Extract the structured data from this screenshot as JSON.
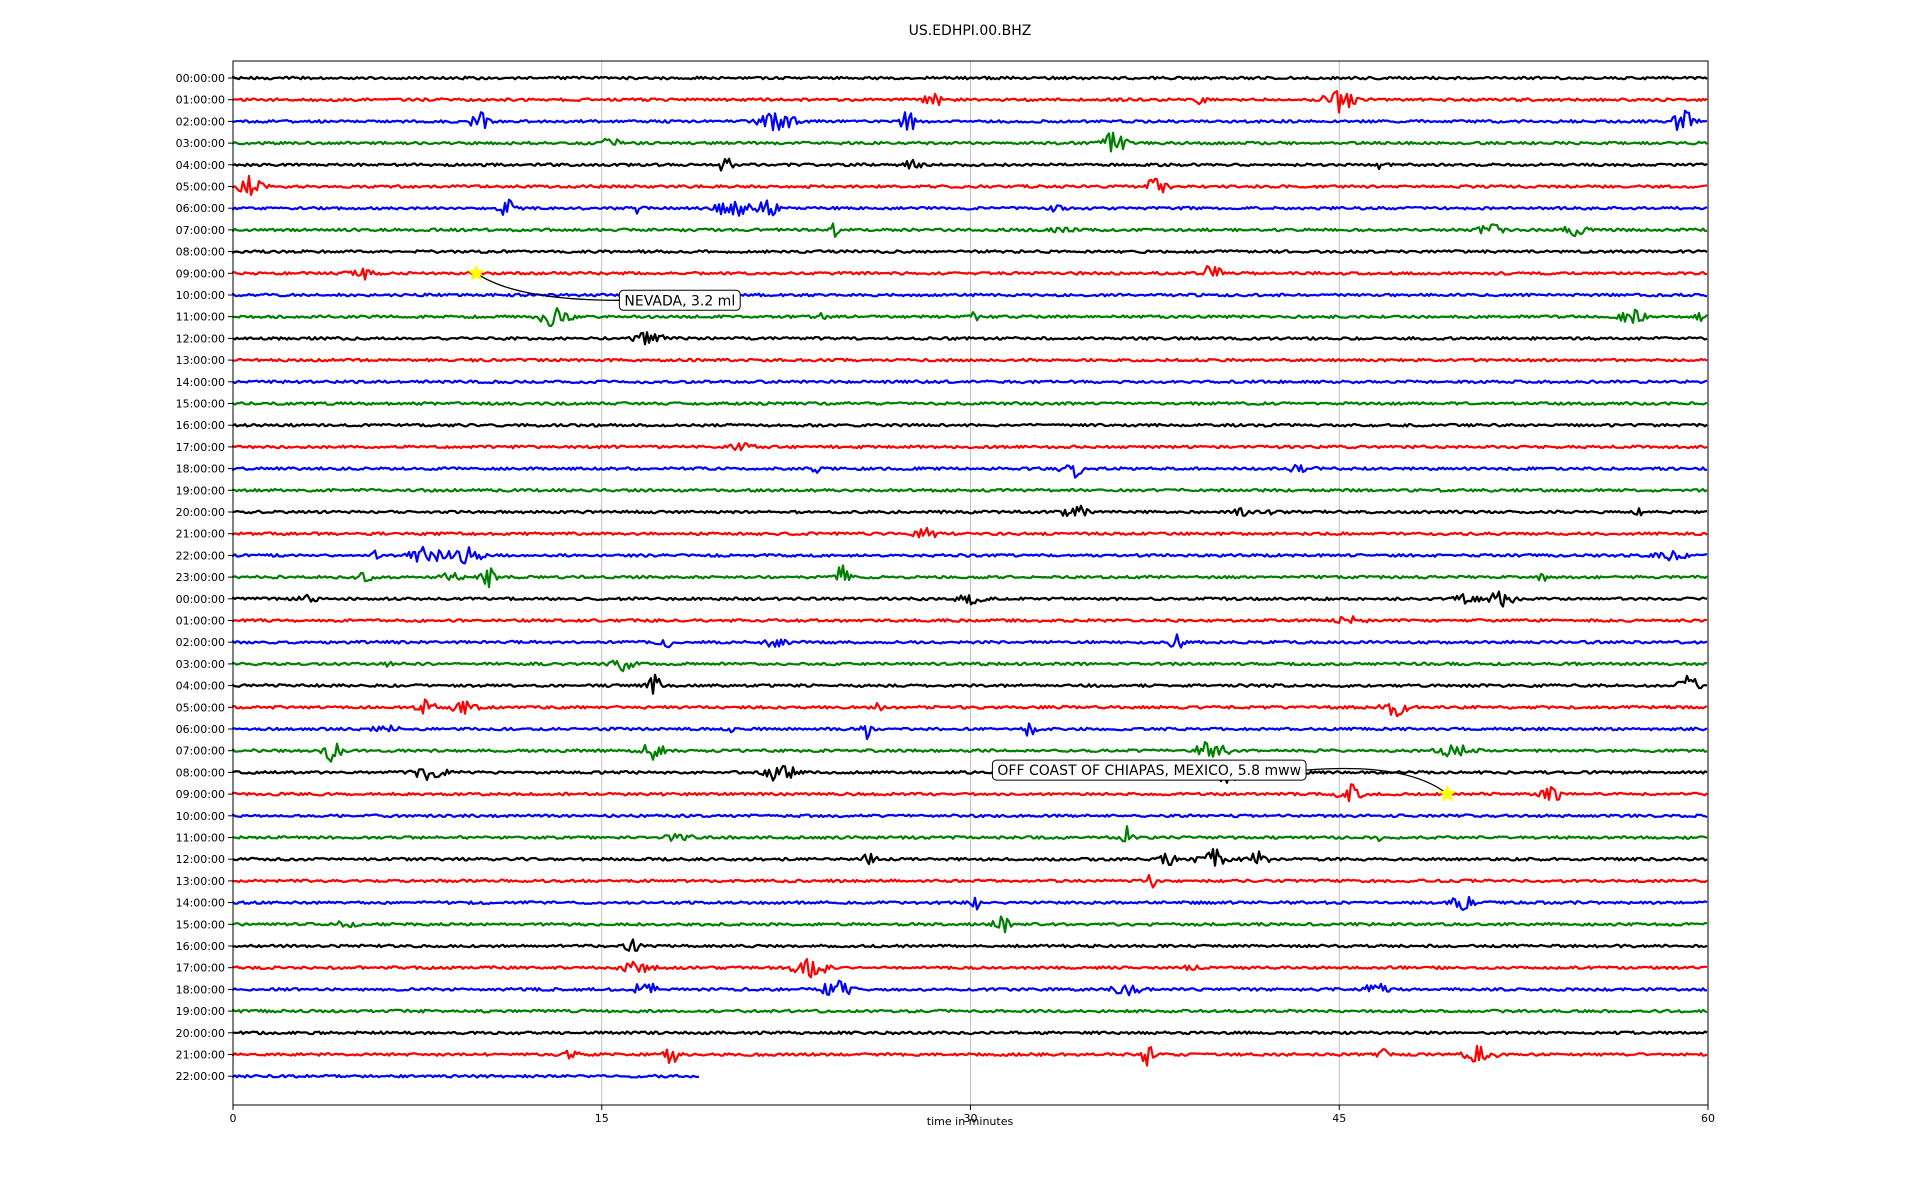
{
  "chart_data": {
    "type": "line",
    "title": "US.EDHPI.00.BHZ",
    "xlabel": "time in minutes",
    "ylabel": "",
    "xlim": [
      0,
      60
    ],
    "x_ticks": [
      0,
      15,
      30,
      45,
      60
    ],
    "grid": "vertical",
    "trace_colors": [
      "#000000",
      "#ff0000",
      "#0000ff",
      "#008000"
    ],
    "row_labels": [
      "00:00:00",
      "01:00:00",
      "02:00:00",
      "03:00:00",
      "04:00:00",
      "05:00:00",
      "06:00:00",
      "07:00:00",
      "08:00:00",
      "09:00:00",
      "10:00:00",
      "11:00:00",
      "12:00:00",
      "13:00:00",
      "14:00:00",
      "15:00:00",
      "16:00:00",
      "17:00:00",
      "18:00:00",
      "19:00:00",
      "20:00:00",
      "21:00:00",
      "22:00:00",
      "23:00:00",
      "00:00:00",
      "01:00:00",
      "02:00:00",
      "03:00:00",
      "04:00:00",
      "05:00:00",
      "06:00:00",
      "07:00:00",
      "08:00:00",
      "09:00:00",
      "10:00:00",
      "11:00:00",
      "12:00:00",
      "13:00:00",
      "14:00:00",
      "15:00:00",
      "16:00:00",
      "17:00:00",
      "18:00:00",
      "19:00:00",
      "20:00:00",
      "21:00:00",
      "22:00:00"
    ],
    "last_row_end_minute": 19,
    "events": [
      {
        "label": "NEVADA, 3.2 ml",
        "row": 9,
        "minute": 9.9,
        "marker_color": "#ffff00"
      },
      {
        "label": "OFF COAST OF CHIAPAS, MEXICO, 5.8 mww",
        "row": 33,
        "minute": 49.4,
        "marker_color": "#ffff00"
      }
    ]
  }
}
